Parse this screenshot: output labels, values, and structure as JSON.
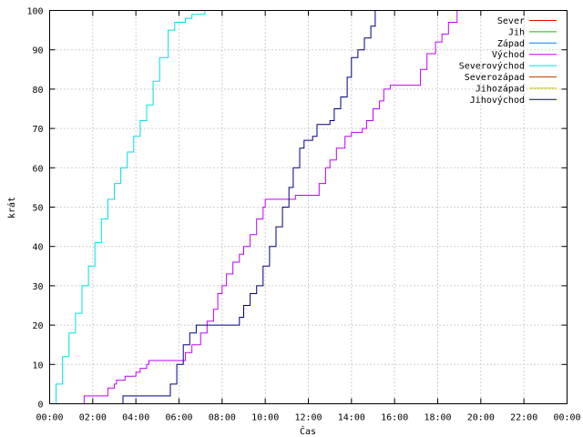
{
  "chart_data": {
    "type": "line",
    "xlabel": "Čas",
    "ylabel": "krát",
    "xlim": [
      0,
      24
    ],
    "ylim": [
      0,
      100
    ],
    "x_ticks": [
      {
        "value": 0,
        "label": "00:00"
      },
      {
        "value": 2,
        "label": "02:00"
      },
      {
        "value": 4,
        "label": "04:00"
      },
      {
        "value": 6,
        "label": "06:00"
      },
      {
        "value": 8,
        "label": "08:00"
      },
      {
        "value": 10,
        "label": "10:00"
      },
      {
        "value": 12,
        "label": "12:00"
      },
      {
        "value": 14,
        "label": "14:00"
      },
      {
        "value": 16,
        "label": "16:00"
      },
      {
        "value": 18,
        "label": "18:00"
      },
      {
        "value": 20,
        "label": "20:00"
      },
      {
        "value": 22,
        "label": "22:00"
      },
      {
        "value": 24,
        "label": "00:00"
      }
    ],
    "y_ticks": [
      0,
      10,
      20,
      30,
      40,
      50,
      60,
      70,
      80,
      90,
      100
    ],
    "grid": true,
    "legend_position": "top-right",
    "series": [
      {
        "name": "Sever",
        "color": "#ff0000",
        "points": []
      },
      {
        "name": "Jih",
        "color": "#00c000",
        "points": []
      },
      {
        "name": "Západ",
        "color": "#0080ff",
        "points": []
      },
      {
        "name": "Východ",
        "color": "#c000ff",
        "points": [
          [
            1.6,
            0
          ],
          [
            1.6,
            2
          ],
          [
            2.6,
            2
          ],
          [
            2.7,
            4
          ],
          [
            3.0,
            5
          ],
          [
            3.1,
            6
          ],
          [
            3.5,
            7
          ],
          [
            4.0,
            8
          ],
          [
            4.2,
            9
          ],
          [
            4.5,
            10
          ],
          [
            4.6,
            11
          ],
          [
            6.0,
            11
          ],
          [
            6.3,
            13
          ],
          [
            6.6,
            15
          ],
          [
            7.0,
            18
          ],
          [
            7.3,
            21
          ],
          [
            7.6,
            24
          ],
          [
            7.8,
            28
          ],
          [
            8.0,
            30
          ],
          [
            8.2,
            33
          ],
          [
            8.5,
            36
          ],
          [
            8.8,
            38
          ],
          [
            9.0,
            40
          ],
          [
            9.3,
            43
          ],
          [
            9.6,
            47
          ],
          [
            9.9,
            50
          ],
          [
            10.0,
            52
          ],
          [
            11.3,
            52
          ],
          [
            11.4,
            53
          ],
          [
            12.3,
            53
          ],
          [
            12.5,
            56
          ],
          [
            12.8,
            60
          ],
          [
            13.0,
            62
          ],
          [
            13.3,
            65
          ],
          [
            13.7,
            68
          ],
          [
            14.0,
            69
          ],
          [
            14.5,
            70
          ],
          [
            14.7,
            72
          ],
          [
            15.0,
            75
          ],
          [
            15.3,
            77
          ],
          [
            15.5,
            80
          ],
          [
            15.8,
            81
          ],
          [
            17.0,
            81
          ],
          [
            17.2,
            85
          ],
          [
            17.5,
            89
          ],
          [
            17.9,
            92
          ],
          [
            18.2,
            94
          ],
          [
            18.5,
            97
          ],
          [
            18.9,
            100
          ]
        ]
      },
      {
        "name": "Severovýchod",
        "color": "#00e0e0",
        "points": [
          [
            0.05,
            0
          ],
          [
            0.3,
            5
          ],
          [
            0.6,
            12
          ],
          [
            0.9,
            18
          ],
          [
            1.2,
            23
          ],
          [
            1.5,
            30
          ],
          [
            1.8,
            35
          ],
          [
            2.1,
            41
          ],
          [
            2.4,
            47
          ],
          [
            2.7,
            52
          ],
          [
            3.0,
            56
          ],
          [
            3.3,
            60
          ],
          [
            3.6,
            64
          ],
          [
            3.9,
            68
          ],
          [
            4.2,
            72
          ],
          [
            4.5,
            76
          ],
          [
            4.8,
            82
          ],
          [
            5.1,
            88
          ],
          [
            5.5,
            95
          ],
          [
            5.8,
            97
          ],
          [
            6.3,
            98
          ],
          [
            6.6,
            99
          ],
          [
            7.2,
            100
          ]
        ]
      },
      {
        "name": "Severozápad",
        "color": "#c04000",
        "points": []
      },
      {
        "name": "Jihozápad",
        "color": "#c8c800",
        "points": []
      },
      {
        "name": "Jihovýchod",
        "color": "#000080",
        "points": [
          [
            3.4,
            0
          ],
          [
            3.4,
            2
          ],
          [
            5.5,
            2
          ],
          [
            5.6,
            5
          ],
          [
            5.9,
            10
          ],
          [
            6.2,
            15
          ],
          [
            6.5,
            18
          ],
          [
            6.8,
            20
          ],
          [
            8.6,
            20
          ],
          [
            8.8,
            22
          ],
          [
            9.0,
            25
          ],
          [
            9.3,
            28
          ],
          [
            9.6,
            30
          ],
          [
            9.9,
            35
          ],
          [
            10.2,
            40
          ],
          [
            10.5,
            45
          ],
          [
            10.8,
            50
          ],
          [
            11.1,
            55
          ],
          [
            11.3,
            60
          ],
          [
            11.6,
            65
          ],
          [
            11.8,
            67
          ],
          [
            12.2,
            68
          ],
          [
            12.4,
            71
          ],
          [
            13.0,
            72
          ],
          [
            13.2,
            75
          ],
          [
            13.5,
            78
          ],
          [
            13.8,
            83
          ],
          [
            14.0,
            88
          ],
          [
            14.3,
            90
          ],
          [
            14.6,
            93
          ],
          [
            14.9,
            96
          ],
          [
            15.1,
            100
          ]
        ]
      }
    ]
  }
}
